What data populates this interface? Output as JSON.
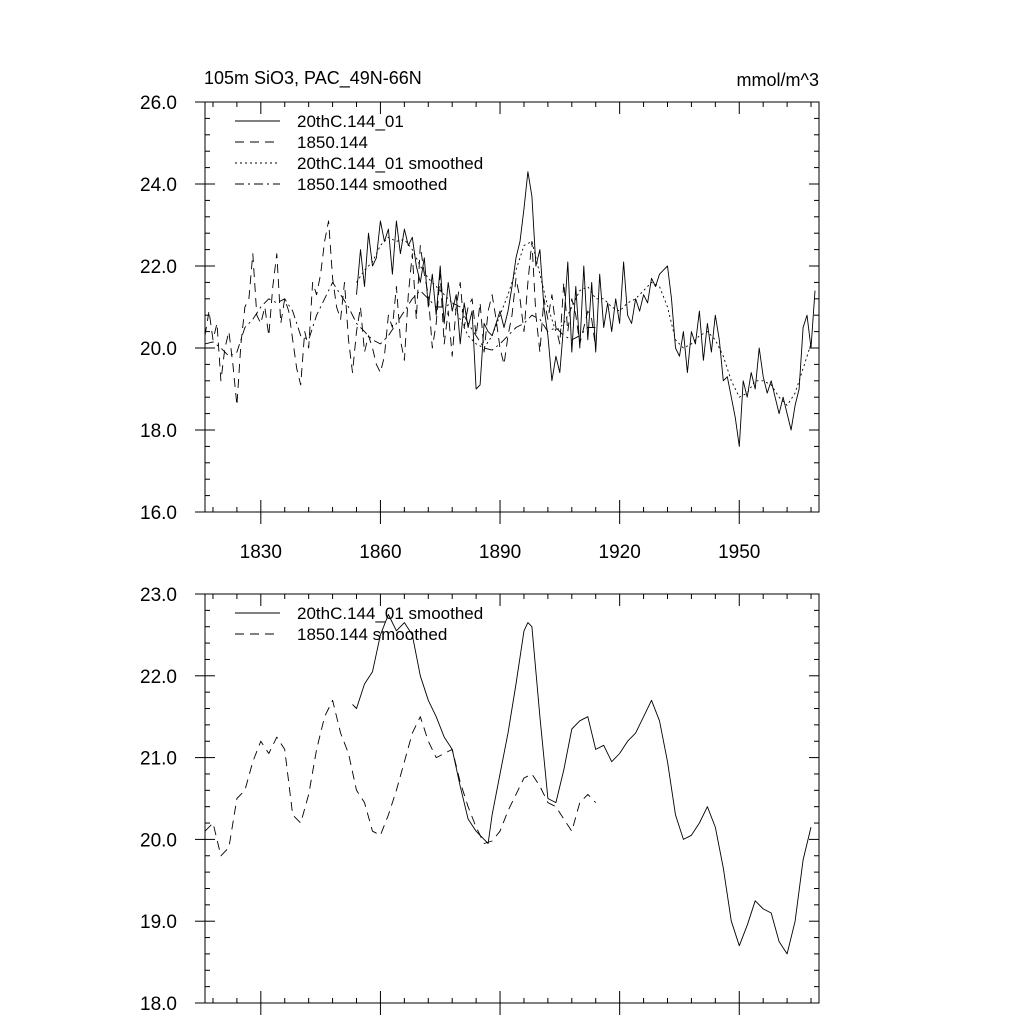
{
  "chart_data": [
    {
      "type": "line",
      "title": "105m SiO3, PAC_49N-66N",
      "units": "mmol/m^3",
      "ylim": [
        16.0,
        26.0
      ],
      "xlim": [
        1816,
        1970
      ],
      "yticks": [
        "16.0",
        "18.0",
        "20.0",
        "22.0",
        "24.0",
        "26.0"
      ],
      "xticks": [
        1830,
        1860,
        1890,
        1920,
        1950
      ],
      "legend_position": "top-left",
      "series": [
        {
          "name": "20thC.144_01",
          "style": "solid",
          "x": [
            1854,
            1855,
            1856,
            1857,
            1858,
            1859,
            1860,
            1861,
            1862,
            1863,
            1864,
            1865,
            1866,
            1867,
            1868,
            1869,
            1870,
            1871,
            1872,
            1873,
            1874,
            1875,
            1876,
            1877,
            1878,
            1879,
            1880,
            1881,
            1882,
            1883,
            1884,
            1885,
            1886,
            1887,
            1888,
            1889,
            1890,
            1891,
            1892,
            1893,
            1894,
            1895,
            1896,
            1897,
            1898,
            1899,
            1900,
            1901,
            1902,
            1903,
            1904,
            1905,
            1906,
            1907,
            1908,
            1909,
            1910,
            1911,
            1912,
            1913,
            1914,
            1915,
            1916,
            1917,
            1918,
            1919,
            1920,
            1921,
            1922,
            1923,
            1924,
            1925,
            1926,
            1927,
            1928,
            1929,
            1930,
            1931,
            1932,
            1933,
            1934,
            1935,
            1936,
            1937,
            1938,
            1939,
            1940,
            1941,
            1942,
            1943,
            1944,
            1945,
            1946,
            1947,
            1948,
            1949,
            1950,
            1951,
            1952,
            1953,
            1954,
            1955,
            1956,
            1957,
            1958,
            1959,
            1960,
            1961,
            1962,
            1963,
            1964,
            1965,
            1966,
            1967,
            1968,
            1969
          ],
          "values": [
            21.3,
            22.4,
            21.5,
            22.8,
            22.0,
            22.2,
            23.1,
            22.6,
            22.9,
            21.8,
            23.1,
            22.3,
            22.9,
            22.5,
            22.7,
            22.0,
            21.6,
            22.2,
            21.0,
            21.8,
            20.8,
            22.0,
            20.6,
            21.6,
            20.9,
            21.3,
            20.1,
            21.1,
            20.5,
            20.9,
            19.0,
            19.1,
            20.6,
            20.4,
            20.3,
            20.6,
            20.9,
            20.5,
            20.9,
            21.5,
            22.2,
            22.6,
            23.4,
            24.3,
            23.7,
            22.0,
            22.4,
            21.0,
            20.3,
            19.2,
            19.8,
            19.4,
            20.6,
            22.1,
            19.9,
            21.5,
            20.0,
            22.0,
            20.2,
            21.6,
            19.9,
            21.8,
            20.5,
            21.1,
            20.4,
            21.2,
            20.6,
            22.1,
            20.8,
            20.6,
            21.2,
            20.9,
            21.3,
            21.1,
            21.7,
            21.5,
            21.8,
            21.9,
            22.0,
            21.2,
            20.0,
            19.8,
            20.4,
            19.4,
            20.4,
            20.1,
            20.9,
            19.7,
            20.6,
            19.9,
            20.8,
            20.2,
            19.2,
            19.3,
            18.8,
            18.3,
            17.6,
            19.2,
            18.8,
            19.4,
            19.0,
            20.0,
            19.3,
            18.9,
            19.2,
            18.8,
            18.4,
            18.8,
            18.4,
            18.0,
            18.6,
            19.0,
            20.5,
            20.8,
            20.0,
            21.4
          ]
        },
        {
          "name": "1850.144",
          "style": "dashed",
          "x": [
            1816,
            1817,
            1818,
            1819,
            1820,
            1821,
            1822,
            1823,
            1824,
            1825,
            1826,
            1827,
            1828,
            1829,
            1830,
            1831,
            1832,
            1833,
            1834,
            1835,
            1836,
            1837,
            1838,
            1839,
            1840,
            1841,
            1842,
            1843,
            1844,
            1845,
            1846,
            1847,
            1848,
            1849,
            1850,
            1851,
            1852,
            1853,
            1854,
            1855,
            1856,
            1857,
            1858,
            1859,
            1860,
            1861,
            1862,
            1863,
            1864,
            1865,
            1866,
            1867,
            1868,
            1869,
            1870,
            1871,
            1872,
            1873,
            1874,
            1875,
            1876,
            1877,
            1878,
            1879,
            1880,
            1881,
            1882,
            1883,
            1884,
            1885,
            1886,
            1887,
            1888,
            1889,
            1890,
            1891,
            1892,
            1893,
            1894,
            1895,
            1896,
            1897,
            1898,
            1899,
            1900,
            1901,
            1902,
            1903,
            1904,
            1905,
            1906,
            1907,
            1908,
            1909,
            1910,
            1911,
            1912,
            1913,
            1914
          ],
          "values": [
            20.3,
            20.9,
            20.2,
            20.6,
            19.2,
            20.0,
            20.4,
            19.6,
            18.6,
            20.1,
            21.0,
            21.2,
            22.3,
            20.8,
            20.6,
            21.0,
            20.3,
            21.5,
            22.3,
            20.6,
            21.2,
            20.9,
            20.2,
            19.5,
            19.1,
            20.4,
            20.0,
            21.6,
            21.3,
            21.8,
            22.6,
            23.1,
            21.7,
            21.0,
            20.7,
            21.6,
            20.2,
            19.4,
            20.4,
            21.0,
            19.9,
            20.3,
            20.0,
            19.6,
            19.4,
            19.8,
            20.8,
            20.5,
            21.5,
            20.2,
            19.7,
            21.3,
            22.3,
            20.7,
            22.5,
            21.8,
            21.3,
            20.0,
            20.6,
            21.8,
            20.1,
            20.9,
            19.8,
            21.0,
            21.6,
            20.5,
            21.0,
            21.2,
            20.3,
            21.1,
            19.9,
            20.9,
            21.3,
            20.7,
            20.0,
            19.6,
            20.3,
            20.8,
            21.7,
            21.2,
            20.4,
            21.6,
            22.6,
            20.8,
            19.9,
            21.2,
            20.7,
            21.3,
            20.5,
            20.1,
            21.6,
            20.4,
            21.2,
            20.8,
            20.1,
            20.5,
            20.9,
            20.7,
            20.0
          ]
        },
        {
          "name": "20thC.144_01 smoothed",
          "style": "dotted",
          "x": [
            1854,
            1856,
            1858,
            1860,
            1862,
            1864,
            1866,
            1868,
            1870,
            1872,
            1874,
            1876,
            1878,
            1880,
            1882,
            1884,
            1886,
            1888,
            1890,
            1892,
            1894,
            1896,
            1898,
            1900,
            1902,
            1904,
            1906,
            1908,
            1910,
            1912,
            1914,
            1916,
            1918,
            1920,
            1922,
            1924,
            1926,
            1928,
            1930,
            1932,
            1934,
            1936,
            1938,
            1940,
            1942,
            1944,
            1946,
            1948,
            1950,
            1952,
            1954,
            1956,
            1958,
            1960,
            1962,
            1964,
            1966,
            1968
          ],
          "values": [
            21.6,
            21.9,
            22.1,
            22.5,
            22.7,
            22.6,
            22.65,
            22.4,
            22.0,
            21.7,
            21.5,
            21.3,
            21.1,
            20.7,
            20.3,
            20.1,
            20.0,
            20.3,
            20.8,
            21.3,
            21.9,
            22.5,
            22.6,
            21.8,
            21.0,
            20.4,
            20.6,
            21.0,
            21.4,
            21.5,
            21.2,
            21.2,
            21.0,
            20.9,
            21.1,
            21.2,
            21.4,
            21.6,
            21.5,
            21.0,
            20.2,
            20.0,
            20.1,
            20.3,
            20.4,
            20.2,
            19.8,
            19.2,
            18.8,
            18.9,
            19.2,
            19.2,
            19.1,
            18.8,
            18.6,
            18.9,
            19.5,
            20.1
          ]
        },
        {
          "name": "1850.144 smoothed",
          "style": "dashdot",
          "x": [
            1816,
            1818,
            1820,
            1822,
            1824,
            1826,
            1828,
            1830,
            1832,
            1834,
            1836,
            1838,
            1840,
            1842,
            1844,
            1846,
            1848,
            1850,
            1852,
            1854,
            1856,
            1858,
            1860,
            1862,
            1864,
            1866,
            1868,
            1870,
            1872,
            1874,
            1876,
            1878,
            1880,
            1882,
            1884,
            1886,
            1888,
            1890,
            1892,
            1894,
            1896,
            1898,
            1900,
            1902,
            1904,
            1906,
            1908,
            1910,
            1912,
            1914
          ],
          "values": [
            20.1,
            20.15,
            20.0,
            19.8,
            19.9,
            20.5,
            20.7,
            21.0,
            21.2,
            21.1,
            21.2,
            20.9,
            20.3,
            20.2,
            20.8,
            21.2,
            21.6,
            21.3,
            21.0,
            20.6,
            20.4,
            20.2,
            20.1,
            20.3,
            20.6,
            20.9,
            21.2,
            21.4,
            21.2,
            21.0,
            21.0,
            21.1,
            21.0,
            20.6,
            20.3,
            20.0,
            19.95,
            20.1,
            20.3,
            20.5,
            20.6,
            20.8,
            20.7,
            20.4,
            20.5,
            20.3,
            20.2,
            20.3,
            20.5,
            20.5
          ]
        }
      ]
    },
    {
      "type": "line",
      "ylim": [
        18.0,
        23.0
      ],
      "xlim": [
        1816,
        1970
      ],
      "yticks": [
        "18.0",
        "19.0",
        "20.0",
        "21.0",
        "22.0",
        "23.0"
      ],
      "xticks": [
        1830,
        1860,
        1890,
        1920,
        1950
      ],
      "legend_position": "top-left",
      "series": [
        {
          "name": "20thC.144_01 smoothed",
          "style": "solid",
          "x": [
            1853,
            1854,
            1856,
            1858,
            1860,
            1862,
            1864,
            1866,
            1868,
            1870,
            1872,
            1874,
            1876,
            1878,
            1880,
            1882,
            1884,
            1886,
            1887,
            1888,
            1890,
            1892,
            1894,
            1896,
            1897,
            1898,
            1900,
            1902,
            1904,
            1906,
            1908,
            1910,
            1912,
            1914,
            1916,
            1918,
            1920,
            1922,
            1924,
            1926,
            1928,
            1930,
            1932,
            1934,
            1936,
            1938,
            1940,
            1942,
            1944,
            1946,
            1948,
            1950,
            1952,
            1954,
            1956,
            1958,
            1960,
            1962,
            1964,
            1966,
            1968
          ],
          "values": [
            21.65,
            21.6,
            21.9,
            22.05,
            22.5,
            22.75,
            22.55,
            22.65,
            22.5,
            22.0,
            21.7,
            21.5,
            21.25,
            21.1,
            20.65,
            20.25,
            20.1,
            20.0,
            19.95,
            20.3,
            20.8,
            21.3,
            21.9,
            22.55,
            22.65,
            22.6,
            21.5,
            20.5,
            20.45,
            20.85,
            21.35,
            21.45,
            21.5,
            21.1,
            21.15,
            20.95,
            21.05,
            21.2,
            21.3,
            21.5,
            21.7,
            21.45,
            20.95,
            20.3,
            20.0,
            20.05,
            20.2,
            20.4,
            20.15,
            19.65,
            19.0,
            18.7,
            18.95,
            19.25,
            19.15,
            19.1,
            18.75,
            18.6,
            19.0,
            19.75,
            20.15
          ]
        },
        {
          "name": "1850.144 smoothed",
          "style": "dashed",
          "x": [
            1816,
            1818,
            1820,
            1822,
            1824,
            1826,
            1828,
            1830,
            1832,
            1834,
            1836,
            1838,
            1840,
            1842,
            1844,
            1846,
            1848,
            1850,
            1852,
            1854,
            1856,
            1858,
            1860,
            1862,
            1864,
            1866,
            1868,
            1870,
            1872,
            1874,
            1876,
            1878,
            1880,
            1882,
            1884,
            1886,
            1888,
            1890,
            1892,
            1894,
            1896,
            1898,
            1900,
            1902,
            1904,
            1906,
            1908,
            1910,
            1912,
            1914
          ],
          "values": [
            20.1,
            20.2,
            19.8,
            19.9,
            20.5,
            20.6,
            20.95,
            21.2,
            21.05,
            21.25,
            21.1,
            20.3,
            20.2,
            20.55,
            21.1,
            21.5,
            21.7,
            21.3,
            21.05,
            20.6,
            20.45,
            20.1,
            20.05,
            20.3,
            20.6,
            20.95,
            21.3,
            21.5,
            21.2,
            21.0,
            21.05,
            21.1,
            20.7,
            20.4,
            20.15,
            19.95,
            19.98,
            20.1,
            20.35,
            20.55,
            20.75,
            20.8,
            20.65,
            20.45,
            20.4,
            20.25,
            20.1,
            20.45,
            20.55,
            20.45
          ]
        }
      ]
    }
  ]
}
